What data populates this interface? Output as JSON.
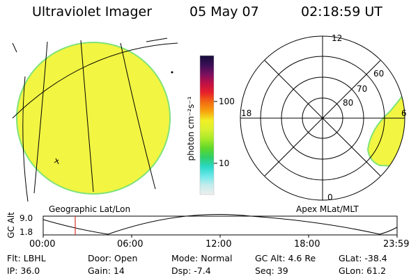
{
  "header": {
    "instrument": "Ultraviolet Imager",
    "date": "05 May 07",
    "time": "02:18:59 UT"
  },
  "colors": {
    "disk_fill": "#f2f542",
    "disk_edge": "#7fe27a",
    "grid_line": "#000000",
    "time_marker": "#d9302a"
  },
  "colorbar": {
    "unit_label": "photon cm⁻²s⁻¹",
    "ticks": [
      "100",
      "10"
    ],
    "stops": [
      "#140c3a",
      "#3a0e55",
      "#7a1060",
      "#c01045",
      "#e8202a",
      "#f26a12",
      "#f7a20e",
      "#f2ef25",
      "#d8f030",
      "#a7ea2a",
      "#5fd82a",
      "#2fcf6a",
      "#2ad8c8",
      "#6fe8ea",
      "#c6ecec",
      "#eeeeee"
    ]
  },
  "left_panel": {
    "label": "Geographic Lat/Lon"
  },
  "right_panel": {
    "label": "Apex MLat/MLT",
    "mlt_labels": {
      "top": "12",
      "left": "18",
      "right": "6",
      "bottom": "0"
    },
    "lat_labels": [
      "60",
      "70",
      "80"
    ]
  },
  "altitude_plot": {
    "ylabel": "GC Alt",
    "ymax_label": "9.0",
    "ymin_label": "1.8",
    "x_ticks": [
      "00:00",
      "06:00",
      "12:00",
      "18:00",
      "23:59"
    ],
    "marker_time_label": "02:18:59"
  },
  "status": {
    "flt": "Flt: LBHL",
    "ip": "IP: 36.0",
    "door": "Door: Open",
    "gain": "Gain: 14",
    "mode": "Mode: Normal",
    "dsp": "Dsp:   -7.4",
    "gcalt": "GC Alt: 4.6 Re",
    "seq": "Seq: 39",
    "glat": "GLat: -38.4",
    "glon": "GLon:  61.2"
  }
}
